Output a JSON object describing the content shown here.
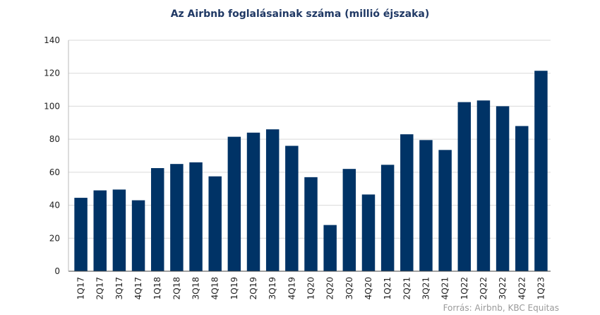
{
  "chart_data": {
    "type": "bar",
    "title": "Az Airbnb foglalásainak száma (millió éjszaka)",
    "source": "Forrás: Airbnb, KBC Equitas",
    "categories": [
      "1Q17",
      "2Q17",
      "3Q17",
      "4Q17",
      "1Q18",
      "2Q18",
      "3Q18",
      "4Q18",
      "1Q19",
      "2Q19",
      "3Q19",
      "4Q19",
      "1Q20",
      "2Q20",
      "3Q20",
      "4Q20",
      "1Q21",
      "2Q21",
      "3Q21",
      "4Q21",
      "1Q22",
      "2Q22",
      "3Q22",
      "4Q22",
      "1Q23"
    ],
    "values": [
      44.5,
      49,
      49.5,
      43,
      62.5,
      65,
      66,
      57.5,
      81.5,
      84,
      86,
      76,
      57,
      28,
      62,
      46.5,
      64.5,
      83,
      79.5,
      73.5,
      102.5,
      103.5,
      100,
      88,
      121.5
    ],
    "ylim": [
      0,
      140
    ],
    "yticks": [
      0,
      20,
      40,
      60,
      80,
      100,
      120,
      140
    ],
    "grid": true,
    "bar_color": "#003366",
    "xlabel": "",
    "ylabel": ""
  }
}
